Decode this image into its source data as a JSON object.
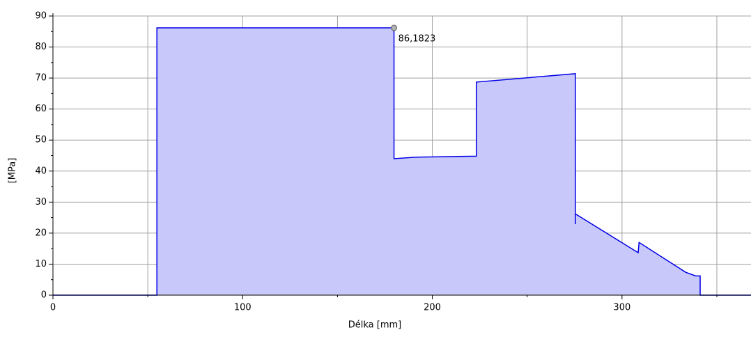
{
  "chart_data": {
    "type": "area",
    "x": [
      0,
      54.8,
      54.8,
      179.8,
      179.8,
      191.5,
      223.2,
      223.2,
      275.4,
      275.4,
      275.4,
      308.5,
      309,
      333.5,
      338.8,
      341.2,
      341.2,
      368
    ],
    "values": [
      0,
      0,
      86.1823,
      86.1823,
      44.0,
      44.5,
      44.8,
      68.7,
      71.4,
      22.9,
      26.2,
      13.7,
      17,
      7.4,
      6.2,
      6.2,
      0,
      0
    ],
    "color": "#0000e6",
    "fill": "#c8c8fa",
    "xlim": [
      0,
      368
    ],
    "ylim": [
      0,
      90
    ],
    "xticks": [
      0,
      100,
      200,
      300
    ],
    "xminorticks": [
      50,
      150,
      250,
      350
    ],
    "yticks": [
      0,
      10,
      20,
      30,
      40,
      50,
      60,
      70,
      80,
      90
    ],
    "yminorticks": [
      5,
      15,
      25,
      35,
      45,
      55,
      65,
      75,
      85
    ],
    "grid": true,
    "xlabel": "Délka [mm]",
    "ylabel": "[MPa]",
    "annotations": [
      {
        "x": 179.8,
        "y": 86.1823,
        "label": "86,1823"
      }
    ]
  }
}
